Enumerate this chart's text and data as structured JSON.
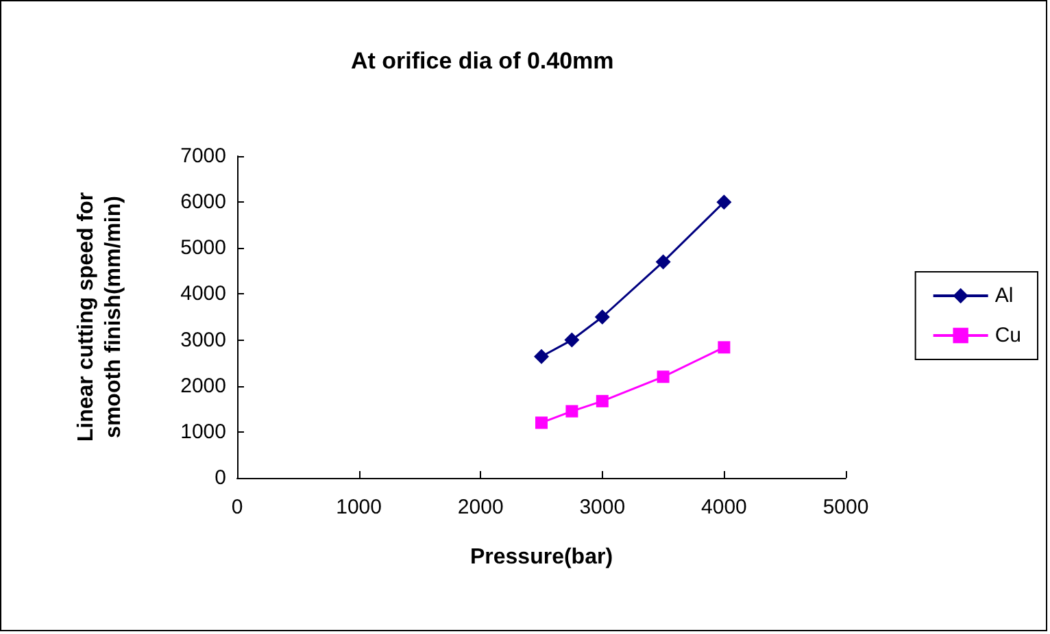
{
  "chart_data": {
    "type": "line",
    "title": "At orifice dia of 0.40mm",
    "xlabel": "Pressure(bar)",
    "ylabel": "Linear cutting speed for\nsmooth finish(mm/min)",
    "x": [
      2500,
      2750,
      3000,
      3500,
      4000
    ],
    "series": [
      {
        "name": "Al",
        "color": "#000080",
        "marker": "diamond",
        "values": [
          2640,
          3000,
          3500,
          4700,
          6000
        ]
      },
      {
        "name": "Cu",
        "color": "#ff00ff",
        "marker": "square",
        "values": [
          1200,
          1450,
          1670,
          2200,
          2840
        ]
      }
    ],
    "xlim": [
      0,
      5000
    ],
    "xticks": [
      0,
      1000,
      2000,
      3000,
      4000,
      5000
    ],
    "ylim": [
      0,
      7000
    ],
    "yticks": [
      0,
      1000,
      2000,
      3000,
      4000,
      5000,
      6000,
      7000
    ],
    "grid": false,
    "legend": "right"
  }
}
